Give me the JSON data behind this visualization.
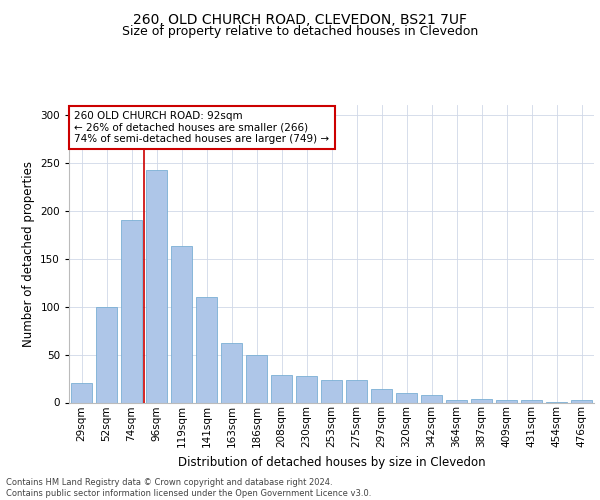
{
  "title_line1": "260, OLD CHURCH ROAD, CLEVEDON, BS21 7UF",
  "title_line2": "Size of property relative to detached houses in Clevedon",
  "xlabel": "Distribution of detached houses by size in Clevedon",
  "ylabel": "Number of detached properties",
  "bar_labels": [
    "29sqm",
    "52sqm",
    "74sqm",
    "96sqm",
    "119sqm",
    "141sqm",
    "163sqm",
    "186sqm",
    "208sqm",
    "230sqm",
    "253sqm",
    "275sqm",
    "297sqm",
    "320sqm",
    "342sqm",
    "364sqm",
    "387sqm",
    "409sqm",
    "431sqm",
    "454sqm",
    "476sqm"
  ],
  "bar_values": [
    20,
    99,
    190,
    242,
    163,
    110,
    62,
    49,
    29,
    28,
    23,
    23,
    14,
    10,
    8,
    3,
    4,
    3,
    3,
    1,
    3
  ],
  "bar_color": "#aec6e8",
  "bar_edge_color": "#7aafd4",
  "vline_color": "#cc0000",
  "vline_index": 3,
  "annotation_text": "260 OLD CHURCH ROAD: 92sqm\n← 26% of detached houses are smaller (266)\n74% of semi-detached houses are larger (749) →",
  "annotation_box_color": "#ffffff",
  "annotation_box_edge": "#cc0000",
  "ylim": [
    0,
    310
  ],
  "yticks": [
    0,
    50,
    100,
    150,
    200,
    250,
    300
  ],
  "footer_text": "Contains HM Land Registry data © Crown copyright and database right 2024.\nContains public sector information licensed under the Open Government Licence v3.0.",
  "bg_color": "#ffffff",
  "grid_color": "#d0d8e8",
  "title_fontsize": 10,
  "subtitle_fontsize": 9,
  "tick_fontsize": 7.5,
  "ylabel_fontsize": 8.5,
  "xlabel_fontsize": 8.5,
  "annotation_fontsize": 7.5,
  "footer_fontsize": 6
}
